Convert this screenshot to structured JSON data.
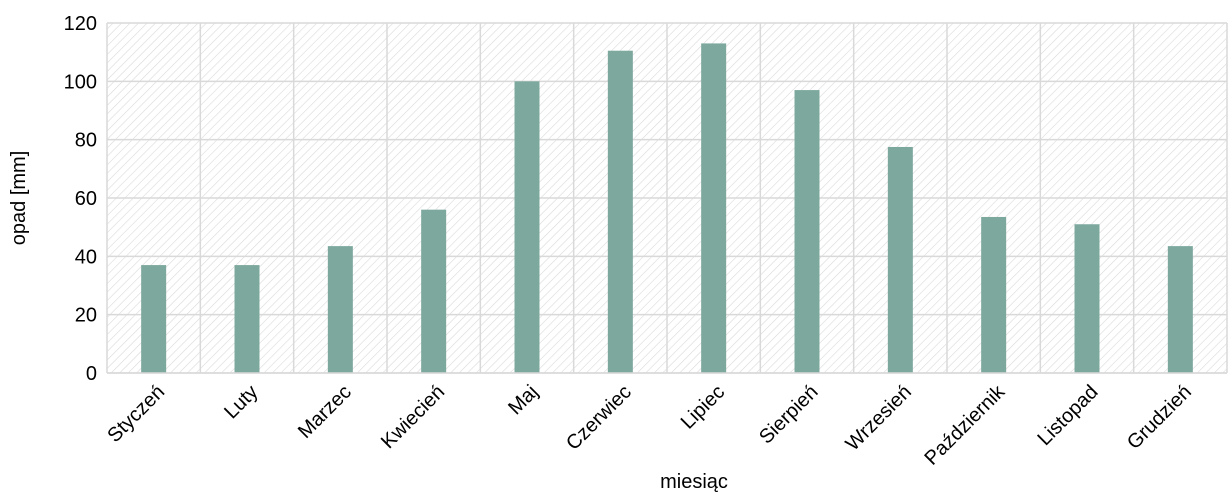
{
  "chart_data": {
    "type": "bar",
    "categories": [
      "Styczeń",
      "Luty",
      "Marzec",
      "Kwiecień",
      "Maj",
      "Czerwiec",
      "Lipiec",
      "Sierpień",
      "Wrzesień",
      "Październik",
      "Listopad",
      "Grudzień"
    ],
    "values": [
      37,
      37,
      43.5,
      56,
      100,
      110.5,
      113,
      97,
      77.5,
      53.5,
      51,
      43.5
    ],
    "xlabel": "miesiąc",
    "ylabel": "opad [mm]",
    "ylim": [
      0,
      120
    ],
    "yticks": [
      0,
      20,
      40,
      60,
      80,
      100,
      120
    ],
    "grid": true,
    "colors": {
      "bar": "#7da89d",
      "grid": "#d9d9d9",
      "hatch": "#d9d9d9"
    }
  }
}
